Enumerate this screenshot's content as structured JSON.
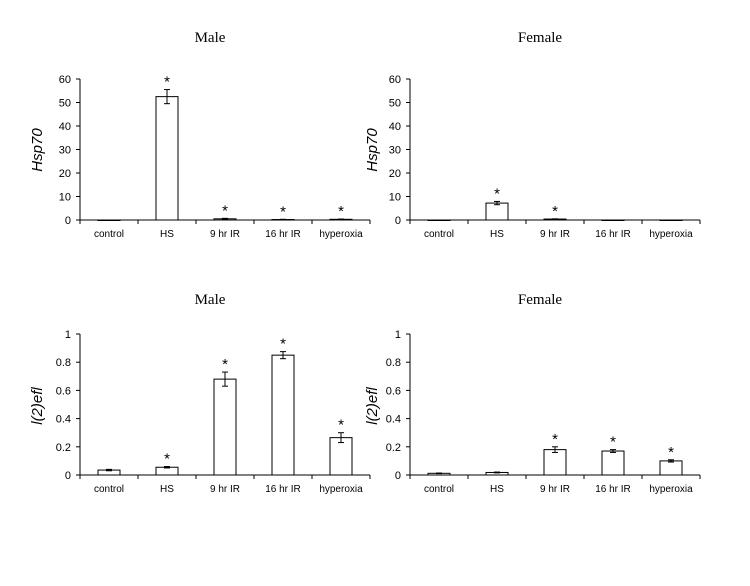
{
  "chart_data": [
    {
      "type": "bar",
      "title": "Male",
      "ylabel": "Hsp70",
      "xlabel": "",
      "ylim": [
        0,
        60
      ],
      "yticks": [
        0,
        10,
        20,
        30,
        40,
        50,
        60
      ],
      "categories": [
        "control",
        "HS",
        "9 hr IR",
        "16 hr IR",
        "hyperoxia"
      ],
      "values": [
        0,
        52.5,
        0.5,
        0.2,
        0.3
      ],
      "errors": [
        0,
        3.0,
        0.2,
        0.1,
        0.1
      ],
      "significant": [
        false,
        true,
        true,
        true,
        true
      ],
      "marker": "*"
    },
    {
      "type": "bar",
      "title": "Female",
      "ylabel": "Hsp70",
      "xlabel": "",
      "ylim": [
        0,
        60
      ],
      "yticks": [
        0,
        10,
        20,
        30,
        40,
        50,
        60
      ],
      "categories": [
        "control",
        "HS",
        "9 hr IR",
        "16 hr IR",
        "hyperoxia"
      ],
      "values": [
        0,
        7.2,
        0.4,
        0,
        0
      ],
      "errors": [
        0,
        0.7,
        0.1,
        0,
        0
      ],
      "significant": [
        false,
        true,
        true,
        false,
        false
      ],
      "marker": "*"
    },
    {
      "type": "bar",
      "title": "Male",
      "ylabel": "l(2)efl",
      "xlabel": "",
      "ylim": [
        0,
        1
      ],
      "yticks": [
        0,
        0.2,
        0.4,
        0.6,
        0.8,
        1
      ],
      "categories": [
        "control",
        "HS",
        "9 hr IR",
        "16 hr IR",
        "hyperoxia"
      ],
      "values": [
        0.035,
        0.055,
        0.68,
        0.85,
        0.265
      ],
      "errors": [
        0.005,
        0.005,
        0.05,
        0.025,
        0.035
      ],
      "significant": [
        false,
        true,
        true,
        true,
        true
      ],
      "marker": "*"
    },
    {
      "type": "bar",
      "title": "Female",
      "ylabel": "l(2)efl",
      "xlabel": "",
      "ylim": [
        0,
        1
      ],
      "yticks": [
        0,
        0.2,
        0.4,
        0.6,
        0.8,
        1
      ],
      "categories": [
        "control",
        "HS",
        "9 hr IR",
        "16 hr IR",
        "hyperoxia"
      ],
      "values": [
        0.012,
        0.018,
        0.18,
        0.17,
        0.1
      ],
      "errors": [
        0.002,
        0.003,
        0.02,
        0.01,
        0.008
      ],
      "significant": [
        false,
        false,
        true,
        true,
        true
      ],
      "marker": "*"
    }
  ]
}
